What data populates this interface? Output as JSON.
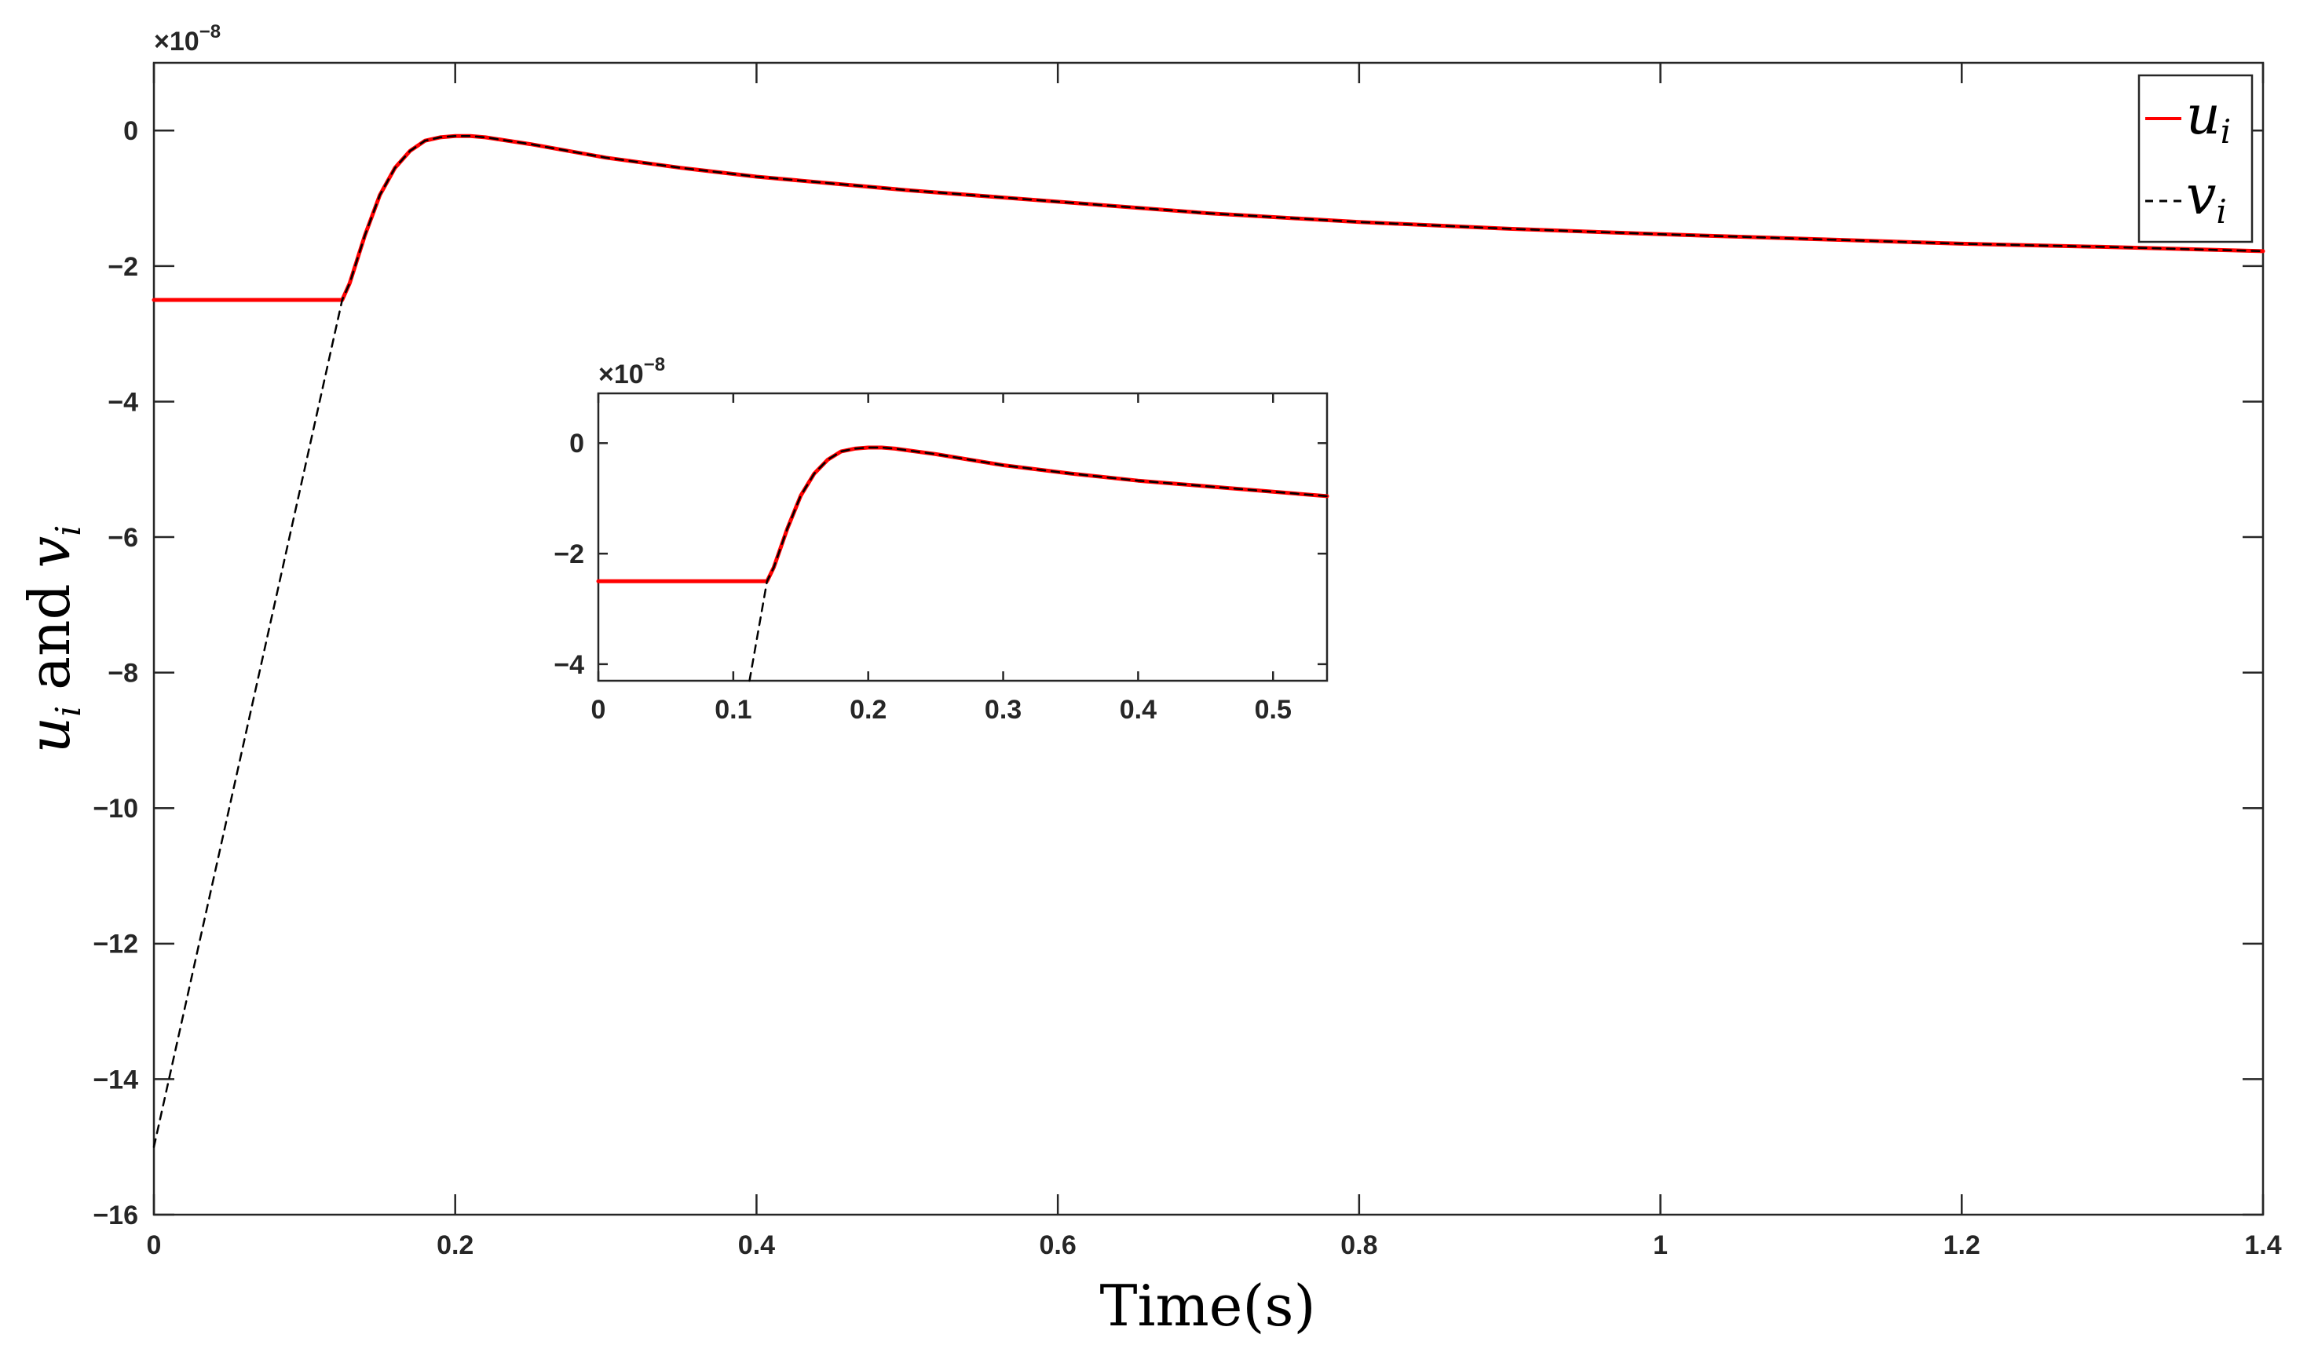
{
  "chart_data": [
    {
      "type": "line",
      "role": "main",
      "xlabel": "Time(s)",
      "ylabel_parts": {
        "u": "u",
        "i1": "i",
        "and": "and",
        "v": "v",
        "i2": "i"
      },
      "y_multiplier": {
        "base": "×10",
        "exp": "−8"
      },
      "xlim": [
        0,
        1.4
      ],
      "ylim": [
        -16,
        1
      ],
      "x_ticks": [
        0,
        0.2,
        0.4,
        0.6,
        0.8,
        1,
        1.2,
        1.4
      ],
      "x_tick_labels": [
        "0",
        "0.2",
        "0.4",
        "0.6",
        "0.8",
        "1",
        "1.2",
        "1.4"
      ],
      "y_ticks": [
        0,
        -2,
        -4,
        -6,
        -8,
        -10,
        -12,
        -14,
        -16
      ],
      "y_tick_labels": [
        "0",
        "−2",
        "−4",
        "−6",
        "−8",
        "−10",
        "−12",
        "−14",
        "−16"
      ],
      "grid": false,
      "legend_position": "top-right",
      "legend": [
        {
          "symbol": "u",
          "sub": "i",
          "style": "solid",
          "color": "#ff0000"
        },
        {
          "symbol": "v",
          "sub": "i",
          "style": "dashed",
          "color": "#000000"
        }
      ],
      "series": [
        {
          "legend_symbol": "u_i",
          "color": "#ff0000",
          "style": "solid",
          "x": [
            0,
            0.125,
            0.13,
            0.14,
            0.15,
            0.16,
            0.17,
            0.18,
            0.19,
            0.2,
            0.21,
            0.22,
            0.25,
            0.3,
            0.35,
            0.4,
            0.5,
            0.6,
            0.7,
            0.8,
            0.9,
            1.0,
            1.1,
            1.2,
            1.3,
            1.4
          ],
          "values": [
            -2.5,
            -2.5,
            -2.25,
            -1.55,
            -0.95,
            -0.55,
            -0.3,
            -0.15,
            -0.1,
            -0.08,
            -0.08,
            -0.1,
            -0.2,
            -0.4,
            -0.55,
            -0.68,
            -0.88,
            -1.05,
            -1.22,
            -1.35,
            -1.45,
            -1.53,
            -1.6,
            -1.67,
            -1.72,
            -1.78
          ]
        },
        {
          "legend_symbol": "v_i",
          "color": "#000000",
          "style": "dashed",
          "x": [
            0,
            0.125,
            0.13,
            0.14,
            0.15,
            0.16,
            0.17,
            0.18,
            0.19,
            0.2,
            0.21,
            0.22,
            0.25,
            0.3,
            0.35,
            0.4,
            0.5,
            0.6,
            0.7,
            0.8,
            0.9,
            1.0,
            1.1,
            1.2,
            1.3,
            1.4
          ],
          "values": [
            -15,
            -2.5,
            -2.25,
            -1.55,
            -0.95,
            -0.55,
            -0.3,
            -0.15,
            -0.1,
            -0.08,
            -0.08,
            -0.1,
            -0.2,
            -0.4,
            -0.55,
            -0.68,
            -0.88,
            -1.05,
            -1.22,
            -1.35,
            -1.45,
            -1.53,
            -1.6,
            -1.67,
            -1.72,
            -1.78
          ]
        }
      ]
    },
    {
      "type": "line",
      "role": "inset",
      "y_multiplier": {
        "base": "×10",
        "exp": "−8"
      },
      "xlim": [
        0,
        0.54
      ],
      "ylim": [
        -4.3,
        0.9
      ],
      "x_ticks": [
        0,
        0.1,
        0.2,
        0.3,
        0.4,
        0.5
      ],
      "x_tick_labels": [
        "0",
        "0.1",
        "0.2",
        "0.3",
        "0.4",
        "0.5"
      ],
      "y_ticks": [
        0,
        -2,
        -4
      ],
      "y_tick_labels": [
        "0",
        "−2",
        "−4"
      ],
      "grid": false,
      "series": [
        {
          "legend_symbol": "u_i",
          "color": "#ff0000",
          "style": "solid",
          "x": [
            0,
            0.125,
            0.13,
            0.14,
            0.15,
            0.16,
            0.17,
            0.18,
            0.19,
            0.2,
            0.21,
            0.22,
            0.25,
            0.3,
            0.35,
            0.4,
            0.45,
            0.5,
            0.54
          ],
          "values": [
            -2.5,
            -2.5,
            -2.25,
            -1.55,
            -0.95,
            -0.55,
            -0.3,
            -0.15,
            -0.1,
            -0.08,
            -0.08,
            -0.1,
            -0.2,
            -0.4,
            -0.55,
            -0.68,
            -0.78,
            -0.88,
            -0.96
          ]
        },
        {
          "legend_symbol": "v_i",
          "color": "#000000",
          "style": "dashed",
          "x": [
            0.112,
            0.125,
            0.13,
            0.14,
            0.15,
            0.16,
            0.17,
            0.18,
            0.19,
            0.2,
            0.21,
            0.22,
            0.25,
            0.3,
            0.35,
            0.4,
            0.45,
            0.5,
            0.54
          ],
          "values": [
            -4.3,
            -2.5,
            -2.25,
            -1.55,
            -0.95,
            -0.55,
            -0.3,
            -0.15,
            -0.1,
            -0.08,
            -0.08,
            -0.1,
            -0.2,
            -0.4,
            -0.55,
            -0.68,
            -0.78,
            -0.88,
            -0.96
          ]
        }
      ]
    }
  ]
}
